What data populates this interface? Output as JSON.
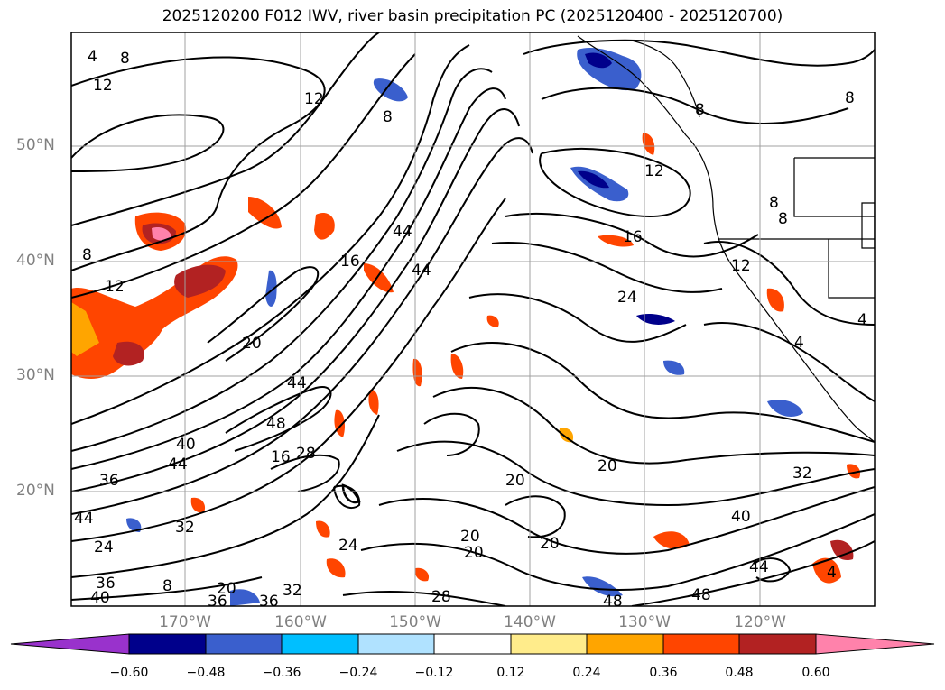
{
  "title": "2025120200 F012 IWV, river basin precipitation PC (2025120400 - 2025120700)",
  "latitude_labels": [
    "50°N",
    "40°N",
    "30°N",
    "20°N"
  ],
  "longitude_labels": [
    "170°W",
    "160°W",
    "150°W",
    "140°W",
    "130°W",
    "120°W"
  ],
  "colorbar": {
    "ticks": [
      "−0.60",
      "−0.48",
      "−0.36",
      "−0.24",
      "−0.12",
      "0.12",
      "0.24",
      "0.36",
      "0.48",
      "0.60"
    ],
    "colors": [
      "#9932cc",
      "#00008b",
      "#3a5fcd",
      "#00bfff",
      "#b0e2ff",
      "#ffffff",
      "#ffec8b",
      "#ffa500",
      "#ff4500",
      "#b22222",
      "#ff82ab"
    ]
  },
  "contour_labels": [
    "4",
    "8",
    "12",
    "12",
    "8",
    "8",
    "12",
    "8",
    "8",
    "12",
    "16",
    "8",
    "8",
    "4",
    "44",
    "44",
    "16",
    "24",
    "20",
    "12",
    "4",
    "44",
    "48",
    "28",
    "16",
    "40",
    "44",
    "36",
    "20",
    "20",
    "32",
    "40",
    "44",
    "24",
    "32",
    "20",
    "24",
    "20",
    "28",
    "36",
    "36",
    "48",
    "48",
    "44",
    "4",
    "8",
    "36",
    "32",
    "20",
    "20",
    "40"
  ]
}
